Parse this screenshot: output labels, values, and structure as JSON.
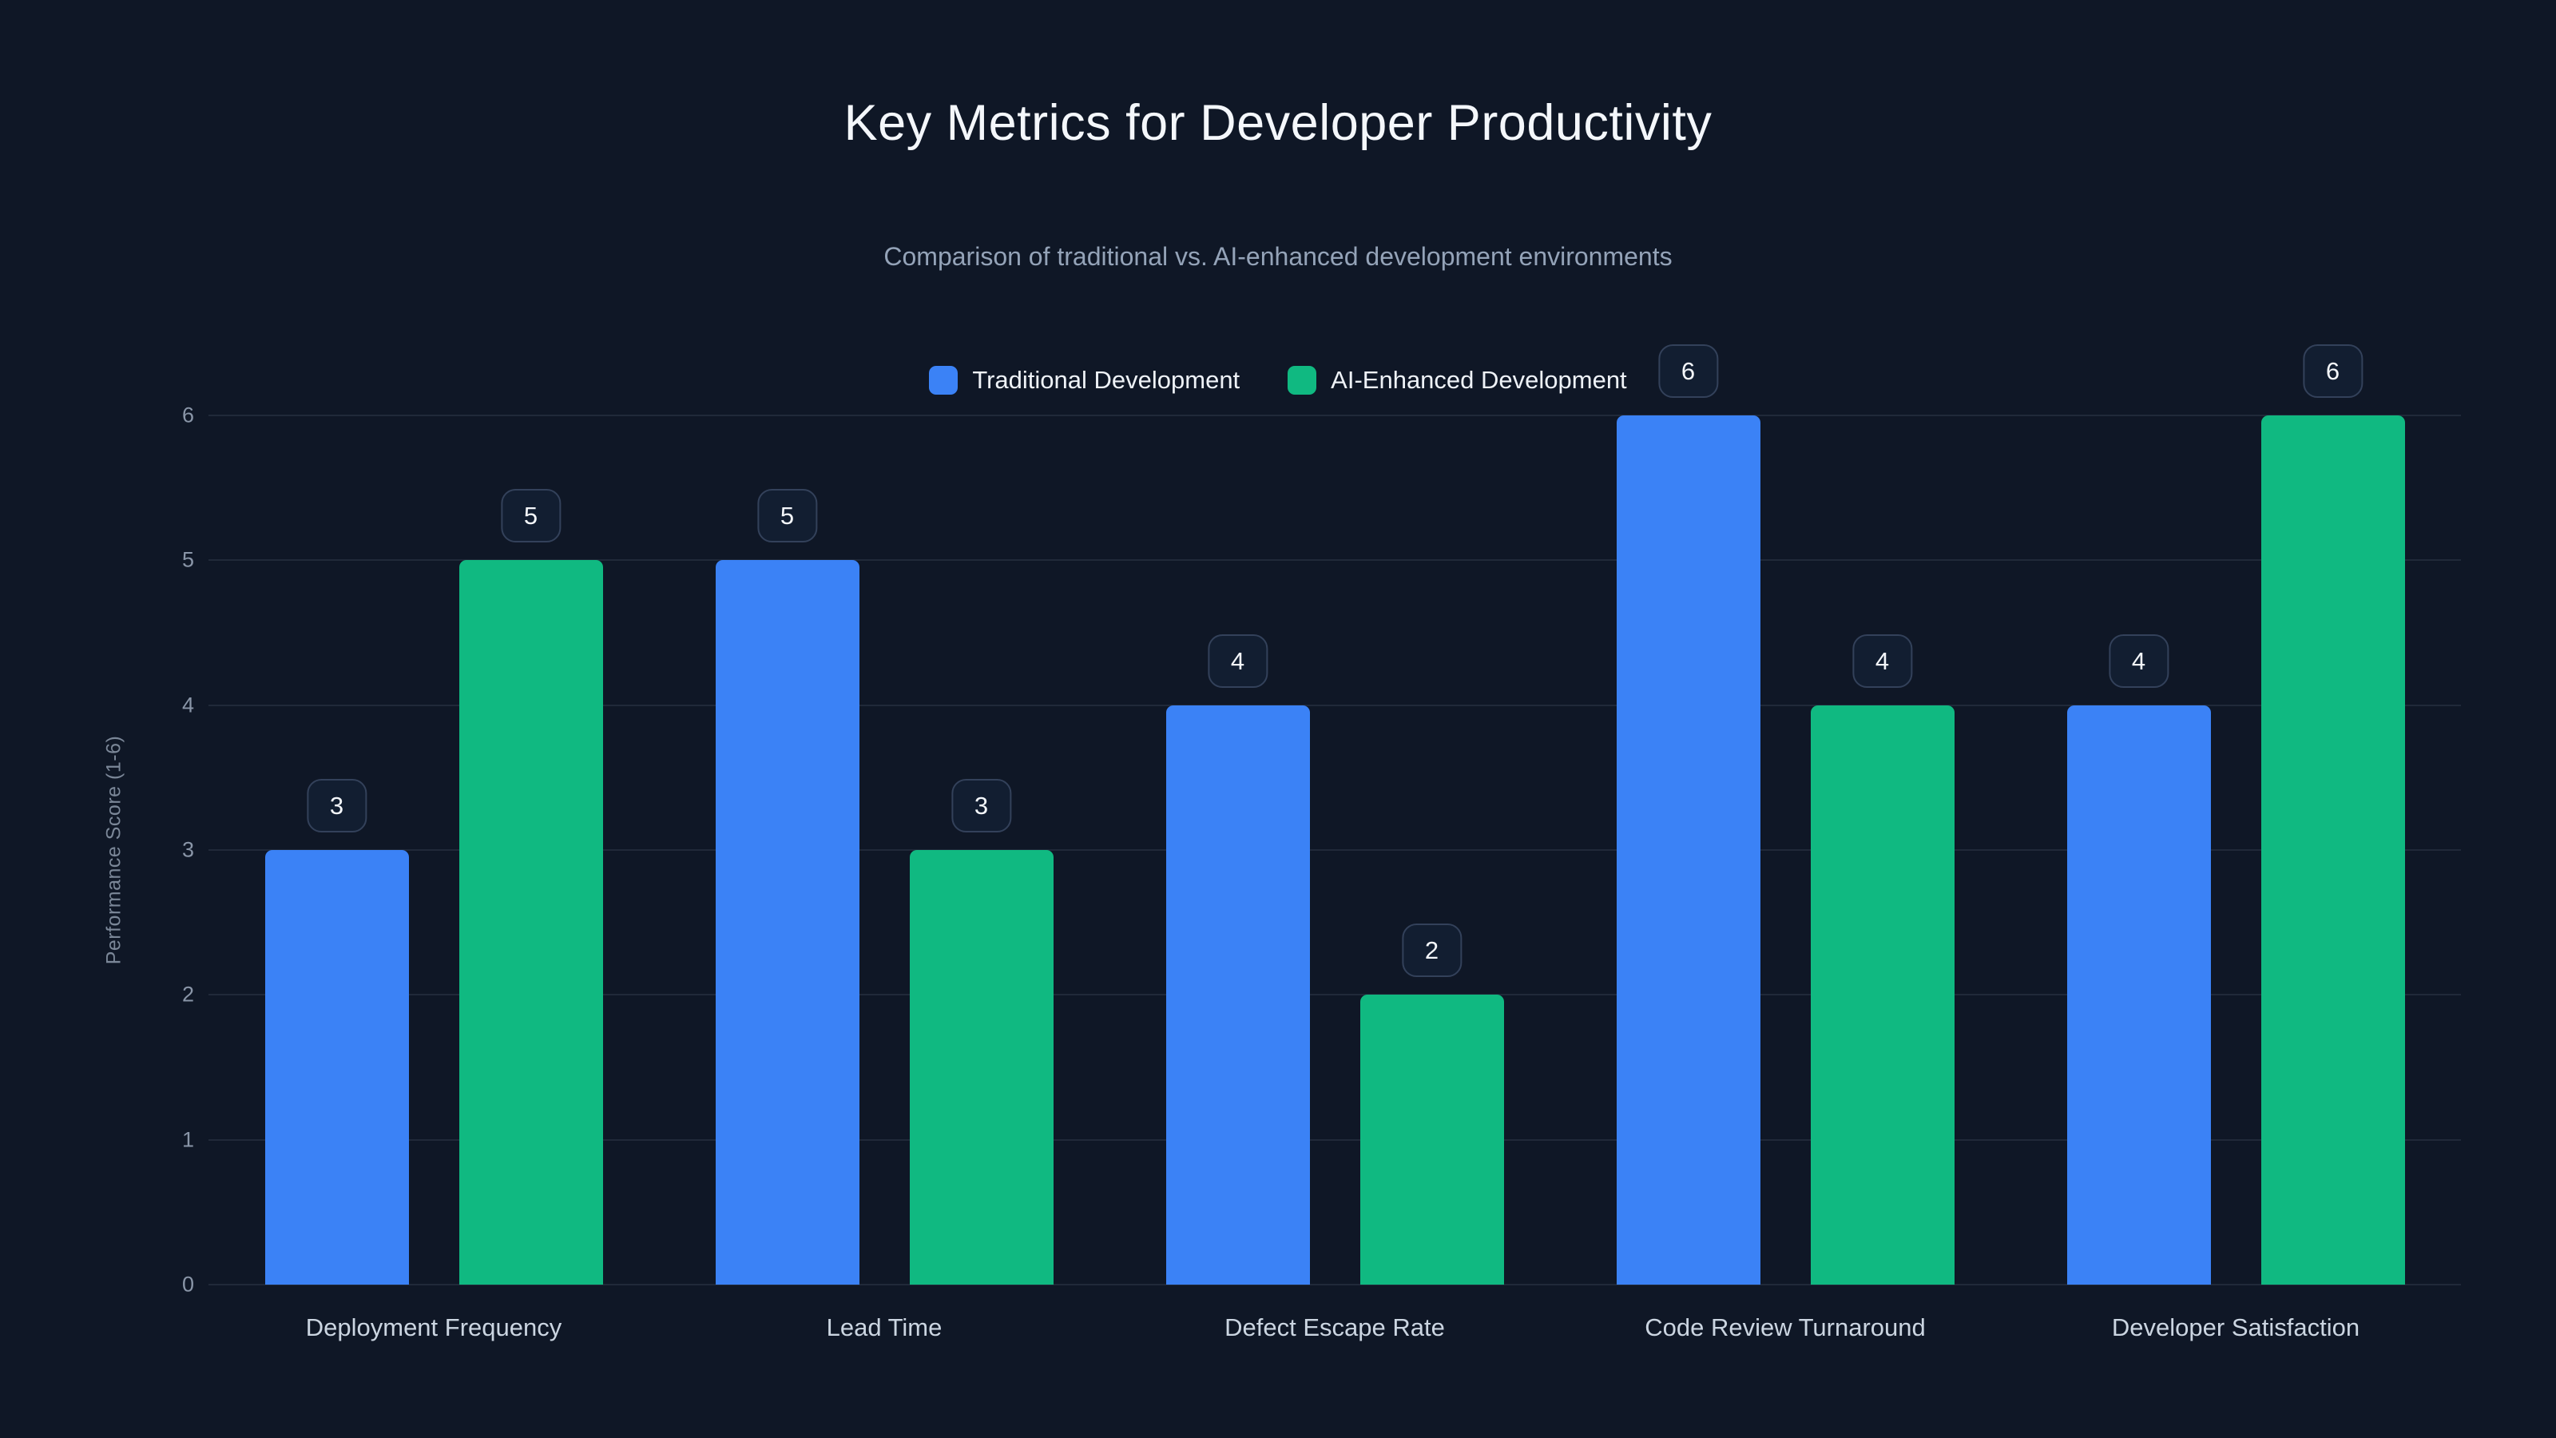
{
  "header": {
    "title": "Key Metrics for Developer Productivity",
    "subtitle": "Comparison of traditional vs. AI-enhanced development environments"
  },
  "legend": [
    {
      "label": "Traditional Development",
      "color": "#3b82f6"
    },
    {
      "label": "AI-Enhanced Development",
      "color": "#10b981"
    }
  ],
  "chart_data": {
    "type": "bar",
    "title": "Key Metrics for Developer Productivity",
    "subtitle": "Comparison of traditional vs. AI-enhanced development environments",
    "categories": [
      "Deployment Frequency",
      "Lead Time",
      "Defect Escape Rate",
      "Code Review Turnaround",
      "Developer Satisfaction"
    ],
    "series": [
      {
        "name": "Traditional Development",
        "color": "#3b82f6",
        "values": [
          3,
          5,
          4,
          6,
          4
        ]
      },
      {
        "name": "AI-Enhanced Development",
        "color": "#10b981",
        "values": [
          5,
          3,
          2,
          4,
          6
        ]
      }
    ],
    "ylabel": "Performance Score (1-6)",
    "ylim": [
      0,
      6
    ],
    "yticks": [
      0,
      1,
      2,
      3,
      4,
      5,
      6
    ],
    "grid": true,
    "legend_position": "top",
    "value_labels": true
  }
}
